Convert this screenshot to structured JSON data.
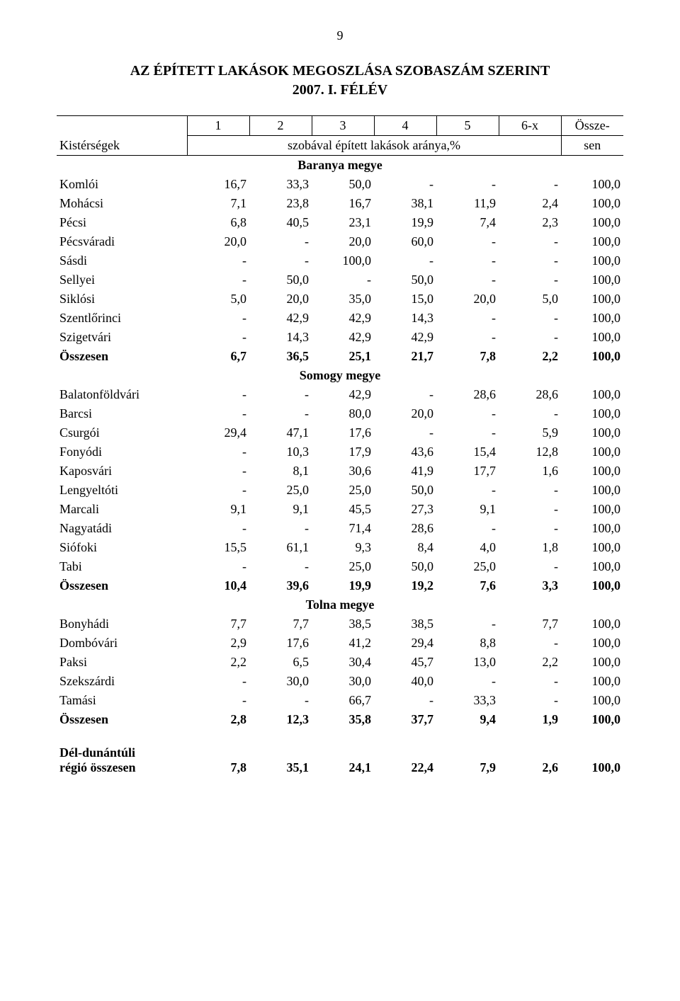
{
  "page_number": "9",
  "title_line1": "AZ ÉPÍTETT LAKÁSOK MEGOSZLÁSA SZOBASZÁM SZERINT",
  "title_line2": "2007. I. FÉLÉV",
  "header": {
    "kisterseg": "Kistérségek",
    "cols": [
      "1",
      "2",
      "3",
      "4",
      "5",
      "6-x"
    ],
    "ossze_top": "Össze-",
    "ossze_bot": "sen",
    "szobaval": "szobával épített lakások aránya,%"
  },
  "sections": [
    {
      "title": "Baranya megye",
      "rows": [
        {
          "label": "Komlói",
          "v": [
            "16,7",
            "33,3",
            "50,0",
            "-",
            "-",
            "-",
            "100,0"
          ],
          "bold": false
        },
        {
          "label": "Mohácsi",
          "v": [
            "7,1",
            "23,8",
            "16,7",
            "38,1",
            "11,9",
            "2,4",
            "100,0"
          ],
          "bold": false
        },
        {
          "label": "Pécsi",
          "v": [
            "6,8",
            "40,5",
            "23,1",
            "19,9",
            "7,4",
            "2,3",
            "100,0"
          ],
          "bold": false
        },
        {
          "label": "Pécsváradi",
          "v": [
            "20,0",
            "-",
            "20,0",
            "60,0",
            "-",
            "-",
            "100,0"
          ],
          "bold": false
        },
        {
          "label": "Sásdi",
          "v": [
            "-",
            "-",
            "100,0",
            "-",
            "-",
            "-",
            "100,0"
          ],
          "bold": false
        },
        {
          "label": "Sellyei",
          "v": [
            "-",
            "50,0",
            "-",
            "50,0",
            "-",
            "-",
            "100,0"
          ],
          "bold": false
        },
        {
          "label": "Siklósi",
          "v": [
            "5,0",
            "20,0",
            "35,0",
            "15,0",
            "20,0",
            "5,0",
            "100,0"
          ],
          "bold": false
        },
        {
          "label": "Szentlőrinci",
          "v": [
            "-",
            "42,9",
            "42,9",
            "14,3",
            "-",
            "-",
            "100,0"
          ],
          "bold": false
        },
        {
          "label": "Szigetvári",
          "v": [
            "-",
            "14,3",
            "42,9",
            "42,9",
            "-",
            "-",
            "100,0"
          ],
          "bold": false
        },
        {
          "label": "Összesen",
          "v": [
            "6,7",
            "36,5",
            "25,1",
            "21,7",
            "7,8",
            "2,2",
            "100,0"
          ],
          "bold": true
        }
      ]
    },
    {
      "title": "Somogy megye",
      "rows": [
        {
          "label": "Balatonföldvári",
          "v": [
            "-",
            "-",
            "42,9",
            "-",
            "28,6",
            "28,6",
            "100,0"
          ],
          "bold": false
        },
        {
          "label": "Barcsi",
          "v": [
            "-",
            "-",
            "80,0",
            "20,0",
            "-",
            "-",
            "100,0"
          ],
          "bold": false
        },
        {
          "label": "Csurgói",
          "v": [
            "29,4",
            "47,1",
            "17,6",
            "-",
            "-",
            "5,9",
            "100,0"
          ],
          "bold": false
        },
        {
          "label": "Fonyódi",
          "v": [
            "-",
            "10,3",
            "17,9",
            "43,6",
            "15,4",
            "12,8",
            "100,0"
          ],
          "bold": false
        },
        {
          "label": "Kaposvári",
          "v": [
            "-",
            "8,1",
            "30,6",
            "41,9",
            "17,7",
            "1,6",
            "100,0"
          ],
          "bold": false
        },
        {
          "label": "Lengyeltóti",
          "v": [
            "-",
            "25,0",
            "25,0",
            "50,0",
            "-",
            "-",
            "100,0"
          ],
          "bold": false
        },
        {
          "label": "Marcali",
          "v": [
            "9,1",
            "9,1",
            "45,5",
            "27,3",
            "9,1",
            "-",
            "100,0"
          ],
          "bold": false
        },
        {
          "label": "Nagyatádi",
          "v": [
            "-",
            "-",
            "71,4",
            "28,6",
            "-",
            "-",
            "100,0"
          ],
          "bold": false
        },
        {
          "label": "Siófoki",
          "v": [
            "15,5",
            "61,1",
            "9,3",
            "8,4",
            "4,0",
            "1,8",
            "100,0"
          ],
          "bold": false
        },
        {
          "label": "Tabi",
          "v": [
            "-",
            "-",
            "25,0",
            "50,0",
            "25,0",
            "-",
            "100,0"
          ],
          "bold": false
        },
        {
          "label": "Összesen",
          "v": [
            "10,4",
            "39,6",
            "19,9",
            "19,2",
            "7,6",
            "3,3",
            "100,0"
          ],
          "bold": true
        }
      ]
    },
    {
      "title": "Tolna megye",
      "rows": [
        {
          "label": "Bonyhádi",
          "v": [
            "7,7",
            "7,7",
            "38,5",
            "38,5",
            "-",
            "7,7",
            "100,0"
          ],
          "bold": false
        },
        {
          "label": "Dombóvári",
          "v": [
            "2,9",
            "17,6",
            "41,2",
            "29,4",
            "8,8",
            "-",
            "100,0"
          ],
          "bold": false
        },
        {
          "label": "Paksi",
          "v": [
            "2,2",
            "6,5",
            "30,4",
            "45,7",
            "13,0",
            "2,2",
            "100,0"
          ],
          "bold": false
        },
        {
          "label": "Szekszárdi",
          "v": [
            "-",
            "30,0",
            "30,0",
            "40,0",
            "-",
            "-",
            "100,0"
          ],
          "bold": false
        },
        {
          "label": "Tamási",
          "v": [
            "-",
            "-",
            "66,7",
            "-",
            "33,3",
            "-",
            "100,0"
          ],
          "bold": false
        },
        {
          "label": "Összesen",
          "v": [
            "2,8",
            "12,3",
            "35,8",
            "37,7",
            "9,4",
            "1,9",
            "100,0"
          ],
          "bold": true
        }
      ]
    }
  ],
  "footer": {
    "label_line1": "Dél-dunántúli",
    "label_line2": "régió összesen",
    "v": [
      "7,8",
      "35,1",
      "24,1",
      "22,4",
      "7,9",
      "2,6",
      "100,0"
    ]
  }
}
